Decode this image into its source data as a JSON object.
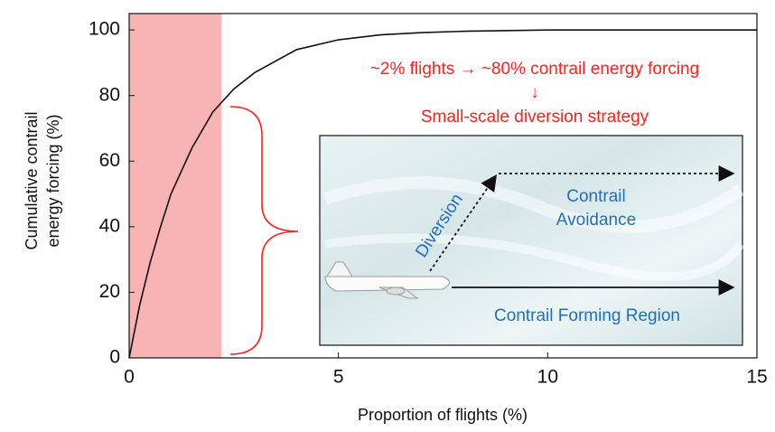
{
  "chart_data": {
    "type": "line",
    "xlabel": "Proportion of flights (%)",
    "ylabel": [
      "Cumulative contrail",
      "energy forcing (%)"
    ],
    "x": [
      0,
      0.25,
      0.5,
      0.75,
      1,
      1.5,
      2,
      2.5,
      3,
      4,
      5,
      6,
      7,
      8,
      10,
      12,
      15
    ],
    "series": [
      {
        "color": "#111111",
        "values": [
          0,
          16,
          29,
          40,
          50,
          64,
          75,
          82,
          87,
          94,
          97,
          98.5,
          99.2,
          99.6,
          100,
          100,
          100
        ]
      }
    ],
    "xlim": [
      0,
      15
    ],
    "xticks": [
      0,
      5,
      10,
      15
    ],
    "ylim": [
      0,
      105
    ],
    "yticks": [
      0,
      20,
      40,
      60,
      80,
      100
    ],
    "highlight": {
      "range": [
        0,
        2.2
      ],
      "color": "#f8b4b4"
    },
    "annotations": [
      "~2% flights → ~80% contrail energy forcing",
      "↓",
      "Small-scale diversion strategy"
    ],
    "annotation_color": "#ff2020",
    "inset": {
      "diversion": "Diversion",
      "avoidance": [
        "Contrail",
        "Avoidance"
      ],
      "forming": "Contrail Forming Region",
      "text_color": "#1f6fc0"
    }
  }
}
